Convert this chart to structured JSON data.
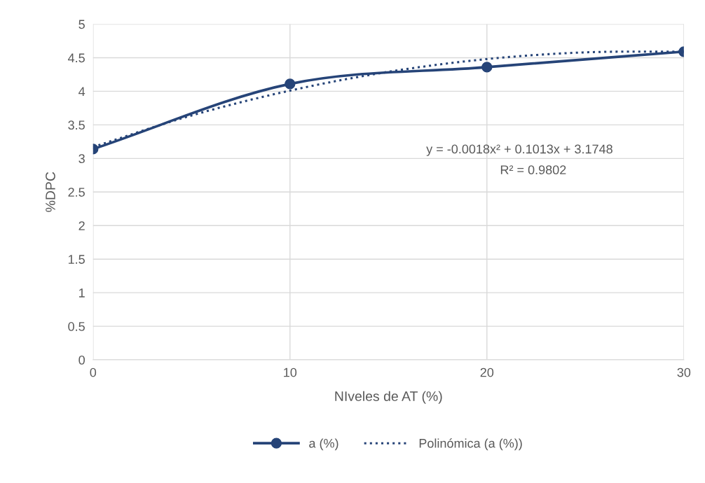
{
  "chart_data": {
    "type": "line",
    "xlabel": "NIveles de AT (%)",
    "ylabel": "%DPC",
    "xlim": [
      0,
      30
    ],
    "xticks": [
      0,
      10,
      20,
      30
    ],
    "ylim": [
      0,
      5
    ],
    "yticks": [
      0,
      0.5,
      1,
      1.5,
      2,
      2.5,
      3,
      3.5,
      4,
      4.5,
      5
    ],
    "grid": true,
    "legend": "bottom",
    "series": [
      {
        "name": "a (%)",
        "color": "#264478",
        "x": [
          0,
          10,
          20,
          30
        ],
        "values": [
          3.14,
          4.11,
          4.36,
          4.59
        ],
        "marker": "circle",
        "line_style": "solid"
      },
      {
        "name": "Polinómica (a (%))",
        "color": "#264478",
        "x": [
          0,
          5,
          10,
          15,
          20,
          25,
          30
        ],
        "values": [
          3.17,
          3.64,
          4.01,
          4.29,
          4.48,
          4.58,
          4.59
        ],
        "marker": "none",
        "line_style": "dotted"
      }
    ],
    "annotations": [
      "y = -0.0018x² + 0.1013x + 3.1748",
      "R² = 0.9802"
    ]
  }
}
